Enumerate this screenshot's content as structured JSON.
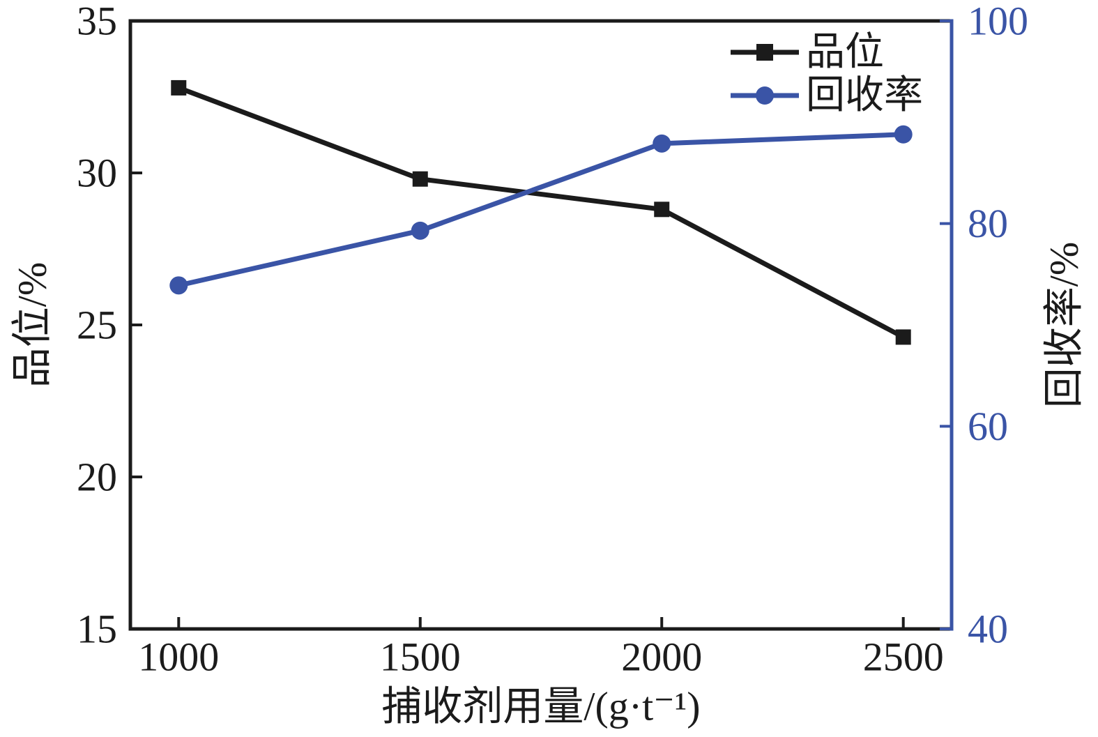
{
  "chart_data": {
    "type": "line",
    "x": [
      1000,
      1500,
      2000,
      2500
    ],
    "series": [
      {
        "name": "品位",
        "axis": "left",
        "marker": "square",
        "color": "#1b1b1b",
        "values": [
          32.8,
          29.8,
          28.8,
          24.6
        ]
      },
      {
        "name": "回收率",
        "axis": "right",
        "marker": "circle",
        "color": "#3A54A6",
        "values": [
          73.9,
          79.3,
          87.9,
          88.8
        ]
      }
    ],
    "title": "",
    "xlabel": "捕收剂用量/(g·t⁻¹)",
    "ylabel_left": "品位/%",
    "ylabel_right": "回收率/%",
    "xlim": [
      900,
      2600
    ],
    "ylim_left": [
      15,
      35
    ],
    "ylim_right": [
      40,
      100
    ],
    "xticks": [
      1000,
      1500,
      2000,
      2500
    ],
    "yticks_left": [
      15,
      20,
      25,
      30,
      35
    ],
    "yticks_right": [
      40,
      60,
      80,
      100
    ],
    "grid": false,
    "legend_position": "top-right"
  },
  "colors": {
    "foreground": "#1b1b1b",
    "accent_blue": "#3A54A6",
    "background": "#ffffff"
  }
}
